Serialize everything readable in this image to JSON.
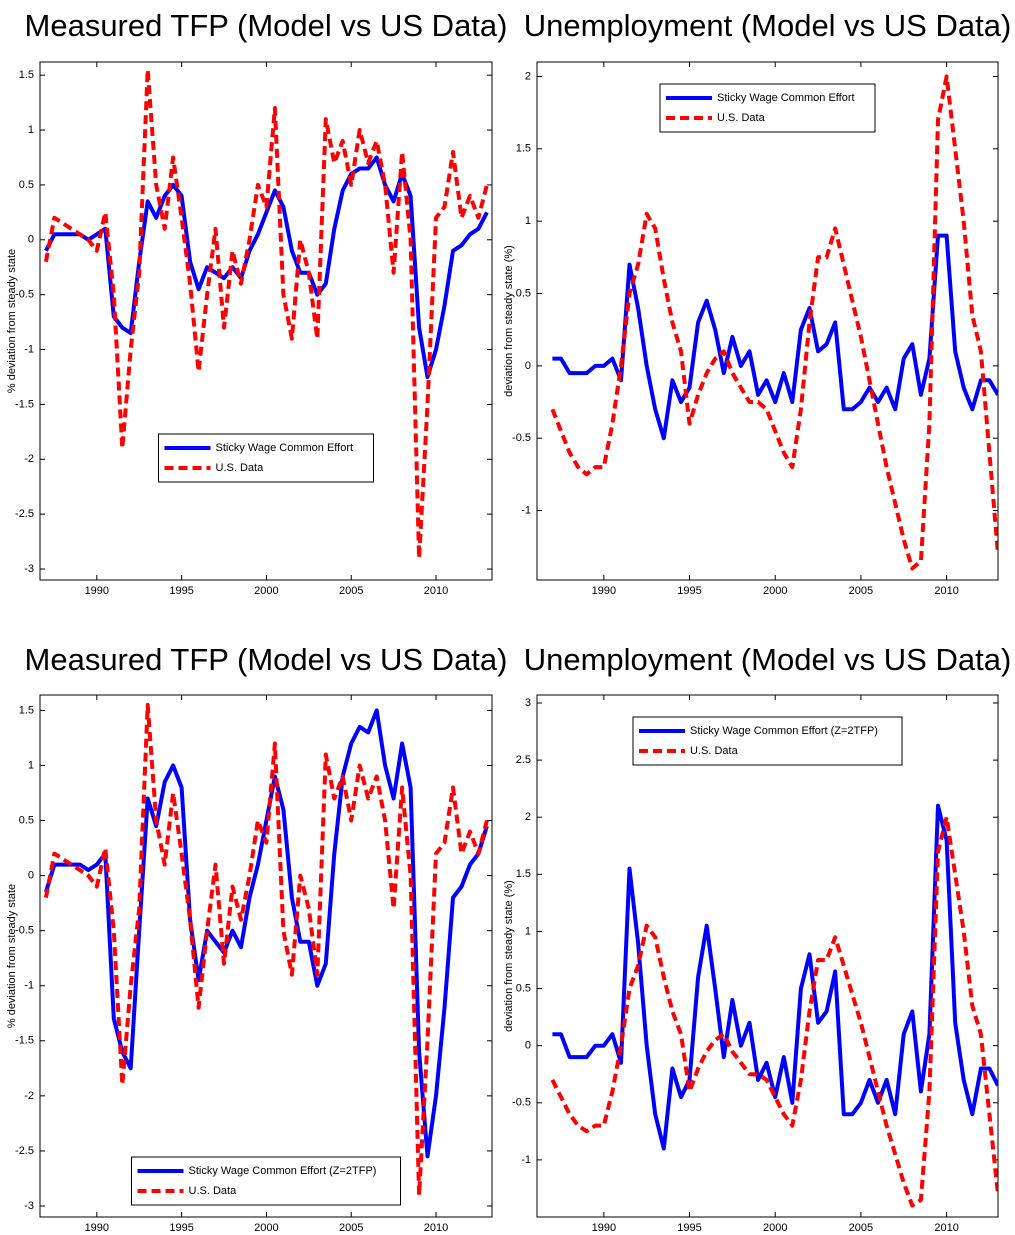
{
  "chart_data": [
    {
      "type": "line",
      "title": "Measured TFP (Model vs US Data)",
      "y_label": "% deviation from steady state",
      "x": [
        1987,
        1987.5,
        1988,
        1988.5,
        1989,
        1989.5,
        1990,
        1990.5,
        1991,
        1991.5,
        1992,
        1992.5,
        1993,
        1993.5,
        1994,
        1994.5,
        1995,
        1995.5,
        1996,
        1996.5,
        1997,
        1997.5,
        1998,
        1998.5,
        1999,
        1999.5,
        2000,
        2000.5,
        2001,
        2001.5,
        2002,
        2002.5,
        2003,
        2003.5,
        2004,
        2004.5,
        2005,
        2005.5,
        2006,
        2006.5,
        2007,
        2007.5,
        2008,
        2008.5,
        2009,
        2009.5,
        2010,
        2010.5,
        2011,
        2011.5,
        2012,
        2012.5,
        2013
      ],
      "xlim": [
        1986.65,
        2013.3
      ],
      "xticks": [
        1990,
        1995,
        2000,
        2005,
        2010
      ],
      "ylim": [
        -3.1,
        1.62
      ],
      "yticks": [
        -3,
        -2.5,
        -2,
        -1.5,
        -1,
        -0.5,
        0,
        0.5,
        1,
        1.5
      ],
      "legend_loc": "lower center",
      "series": [
        {
          "name": "Sticky Wage Common Effort",
          "color": "#0000ff",
          "dashed": false,
          "values": [
            -0.1,
            0.05,
            0.05,
            0.05,
            0.05,
            0,
            0.05,
            0.1,
            -0.7,
            -0.8,
            -0.85,
            -0.2,
            0.35,
            0.2,
            0.4,
            0.5,
            0.4,
            -0.2,
            -0.45,
            -0.25,
            -0.3,
            -0.35,
            -0.25,
            -0.35,
            -0.1,
            0.05,
            0.25,
            0.45,
            0.3,
            -0.1,
            -0.3,
            -0.3,
            -0.5,
            -0.4,
            0.1,
            0.45,
            0.6,
            0.65,
            0.65,
            0.75,
            0.5,
            0.35,
            0.6,
            0.4,
            -0.8,
            -1.25,
            -1,
            -0.6,
            -0.1,
            -0.05,
            0.05,
            0.1,
            0.25
          ]
        },
        {
          "name": "U.S. Data",
          "color": "#ff0000",
          "dashed": true,
          "values": [
            -0.2,
            0.2,
            0.15,
            0.1,
            0.05,
            0,
            -0.1,
            0.25,
            -0.5,
            -1.9,
            -1,
            -0.3,
            1.55,
            0.5,
            0.1,
            0.75,
            0.2,
            -0.4,
            -1.2,
            -0.5,
            0.1,
            -0.8,
            -0.1,
            -0.4,
            0,
            0.5,
            0.3,
            1.2,
            -0.5,
            -0.9,
            0,
            -0.3,
            -0.9,
            1.1,
            0.7,
            0.9,
            0.5,
            1,
            0.7,
            0.9,
            0.5,
            -0.3,
            0.8,
            0,
            -2.9,
            -1.5,
            0.2,
            0.3,
            0.8,
            0.2,
            0.4,
            0.2,
            0.5
          ]
        }
      ]
    },
    {
      "type": "line",
      "title": "Unemployment (Model vs US Data)",
      "y_label": "deviation from steady state (%)",
      "x": [
        1987,
        1987.5,
        1988,
        1988.5,
        1989,
        1989.5,
        1990,
        1990.5,
        1991,
        1991.5,
        1992,
        1992.5,
        1993,
        1993.5,
        1994,
        1994.5,
        1995,
        1995.5,
        1996,
        1996.5,
        1997,
        1997.5,
        1998,
        1998.5,
        1999,
        1999.5,
        2000,
        2000.5,
        2001,
        2001.5,
        2002,
        2002.5,
        2003,
        2003.5,
        2004,
        2004.5,
        2005,
        2005.5,
        2006,
        2006.5,
        2007,
        2007.5,
        2008,
        2008.5,
        2009,
        2009.5,
        2010,
        2010.5,
        2011,
        2011.5,
        2012,
        2012.5,
        2013
      ],
      "xlim": [
        1986.1,
        2013
      ],
      "xticks": [
        1990,
        1995,
        2000,
        2005,
        2010
      ],
      "ylim": [
        -1.48,
        2.1
      ],
      "yticks": [
        -1,
        -0.5,
        0,
        0.5,
        1,
        1.5,
        2
      ],
      "legend_loc": "upper center",
      "series": [
        {
          "name": "Sticky Wage Common Effort",
          "color": "#0000ff",
          "dashed": false,
          "values": [
            0.05,
            0.05,
            -0.05,
            -0.05,
            -0.05,
            0,
            0,
            0.05,
            -0.1,
            0.7,
            0.4,
            0,
            -0.3,
            -0.5,
            -0.1,
            -0.25,
            -0.15,
            0.3,
            0.45,
            0.25,
            -0.05,
            0.2,
            0,
            0.1,
            -0.2,
            -0.1,
            -0.25,
            -0.05,
            -0.25,
            0.25,
            0.4,
            0.1,
            0.15,
            0.3,
            -0.3,
            -0.3,
            -0.25,
            -0.15,
            -0.25,
            -0.15,
            -0.3,
            0.05,
            0.15,
            -0.2,
            0.05,
            0.9,
            0.9,
            0.1,
            -0.15,
            -0.3,
            -0.1,
            -0.1,
            -0.2
          ]
        },
        {
          "name": "U.S. Data",
          "color": "#ff0000",
          "dashed": true,
          "values": [
            -0.3,
            -0.45,
            -0.6,
            -0.7,
            -0.75,
            -0.7,
            -0.7,
            -0.4,
            0,
            0.5,
            0.7,
            1.05,
            0.95,
            0.6,
            0.3,
            0.1,
            -0.4,
            -0.2,
            -0.05,
            0.05,
            0.1,
            -0.05,
            -0.15,
            -0.25,
            -0.25,
            -0.3,
            -0.45,
            -0.6,
            -0.7,
            -0.3,
            0.3,
            0.75,
            0.75,
            0.95,
            0.7,
            0.45,
            0.2,
            -0.1,
            -0.4,
            -0.7,
            -0.95,
            -1.2,
            -1.4,
            -1.35,
            -0.4,
            1.7,
            2,
            1.5,
            1,
            0.35,
            0.1,
            -0.6,
            -1.3
          ]
        }
      ]
    },
    {
      "type": "line",
      "title": "Measured TFP (Model vs US Data)",
      "y_label": "% deviation from steady state",
      "x": [
        1987,
        1987.5,
        1988,
        1988.5,
        1989,
        1989.5,
        1990,
        1990.5,
        1991,
        1991.5,
        1992,
        1992.5,
        1993,
        1993.5,
        1994,
        1994.5,
        1995,
        1995.5,
        1996,
        1996.5,
        1997,
        1997.5,
        1998,
        1998.5,
        1999,
        1999.5,
        2000,
        2000.5,
        2001,
        2001.5,
        2002,
        2002.5,
        2003,
        2003.5,
        2004,
        2004.5,
        2005,
        2005.5,
        2006,
        2006.5,
        2007,
        2007.5,
        2008,
        2008.5,
        2009,
        2009.5,
        2010,
        2010.5,
        2011,
        2011.5,
        2012,
        2012.5,
        2013
      ],
      "xlim": [
        1986.65,
        2013.3
      ],
      "xticks": [
        1990,
        1995,
        2000,
        2005,
        2010
      ],
      "ylim": [
        -3.1,
        1.64
      ],
      "yticks": [
        -3,
        -2.5,
        -2,
        -1.5,
        -1,
        -0.5,
        0,
        0.5,
        1,
        1.5
      ],
      "legend_loc": "lower center",
      "series": [
        {
          "name": "Sticky Wage Common Effort (Z=2TFP)",
          "color": "#0000ff",
          "dashed": false,
          "values": [
            -0.15,
            0.1,
            0.1,
            0.1,
            0.1,
            0.05,
            0.1,
            0.2,
            -1.3,
            -1.6,
            -1.75,
            -0.5,
            0.7,
            0.45,
            0.85,
            1,
            0.8,
            -0.4,
            -0.95,
            -0.5,
            -0.6,
            -0.7,
            -0.5,
            -0.65,
            -0.2,
            0.1,
            0.5,
            0.9,
            0.6,
            -0.2,
            -0.6,
            -0.6,
            -1,
            -0.8,
            0.2,
            0.9,
            1.2,
            1.35,
            1.3,
            1.5,
            1,
            0.7,
            1.2,
            0.8,
            -1.6,
            -2.55,
            -2,
            -1.2,
            -0.2,
            -0.1,
            0.1,
            0.2,
            0.45
          ]
        },
        {
          "name": "U.S. Data",
          "color": "#ff0000",
          "dashed": true,
          "values": [
            -0.2,
            0.2,
            0.15,
            0.1,
            0.05,
            0,
            -0.1,
            0.25,
            -0.5,
            -1.9,
            -1,
            -0.3,
            1.55,
            0.5,
            0.1,
            0.75,
            0.2,
            -0.4,
            -1.2,
            -0.5,
            0.1,
            -0.8,
            -0.1,
            -0.4,
            0,
            0.5,
            0.3,
            1.2,
            -0.5,
            -0.9,
            0,
            -0.3,
            -0.9,
            1.1,
            0.7,
            0.9,
            0.5,
            1,
            0.7,
            0.9,
            0.5,
            -0.3,
            0.8,
            0,
            -2.9,
            -1.5,
            0.2,
            0.3,
            0.8,
            0.2,
            0.4,
            0.2,
            0.5
          ]
        }
      ]
    },
    {
      "type": "line",
      "title": "Unemployment (Model vs US Data)",
      "y_label": "deviation from steady state (%)",
      "x": [
        1987,
        1987.5,
        1988,
        1988.5,
        1989,
        1989.5,
        1990,
        1990.5,
        1991,
        1991.5,
        1992,
        1992.5,
        1993,
        1993.5,
        1994,
        1994.5,
        1995,
        1995.5,
        1996,
        1996.5,
        1997,
        1997.5,
        1998,
        1998.5,
        1999,
        1999.5,
        2000,
        2000.5,
        2001,
        2001.5,
        2002,
        2002.5,
        2003,
        2003.5,
        2004,
        2004.5,
        2005,
        2005.5,
        2006,
        2006.5,
        2007,
        2007.5,
        2008,
        2008.5,
        2009,
        2009.5,
        2010,
        2010.5,
        2011,
        2011.5,
        2012,
        2012.5,
        2013
      ],
      "xlim": [
        1986.1,
        2013
      ],
      "xticks": [
        1990,
        1995,
        2000,
        2005,
        2010
      ],
      "ylim": [
        -1.5,
        3.07
      ],
      "yticks": [
        -1,
        -0.5,
        0,
        0.5,
        1,
        1.5,
        2,
        2.5,
        3
      ],
      "legend_loc": "upper center",
      "series": [
        {
          "name": "Sticky Wage Common Effort (Z=2TFP)",
          "color": "#0000ff",
          "dashed": false,
          "values": [
            0.1,
            0.1,
            -0.1,
            -0.1,
            -0.1,
            0,
            0,
            0.1,
            -0.15,
            1.55,
            0.9,
            0,
            -0.6,
            -0.9,
            -0.2,
            -0.45,
            -0.3,
            0.6,
            1.05,
            0.5,
            -0.1,
            0.4,
            0,
            0.2,
            -0.3,
            -0.15,
            -0.45,
            -0.1,
            -0.5,
            0.5,
            0.8,
            0.2,
            0.3,
            0.65,
            -0.6,
            -0.6,
            -0.5,
            -0.3,
            -0.5,
            -0.3,
            -0.6,
            0.1,
            0.3,
            -0.4,
            0.1,
            2.1,
            1.8,
            0.2,
            -0.3,
            -0.6,
            -0.2,
            -0.2,
            -0.35
          ]
        },
        {
          "name": "U.S. Data",
          "color": "#ff0000",
          "dashed": true,
          "values": [
            -0.3,
            -0.45,
            -0.6,
            -0.7,
            -0.75,
            -0.7,
            -0.7,
            -0.4,
            0,
            0.5,
            0.7,
            1.05,
            0.95,
            0.6,
            0.3,
            0.1,
            -0.4,
            -0.2,
            -0.05,
            0.05,
            0.1,
            -0.05,
            -0.15,
            -0.25,
            -0.25,
            -0.3,
            -0.45,
            -0.6,
            -0.7,
            -0.3,
            0.3,
            0.75,
            0.75,
            0.95,
            0.7,
            0.45,
            0.2,
            -0.1,
            -0.4,
            -0.7,
            -0.95,
            -1.2,
            -1.4,
            -1.35,
            -0.4,
            1.7,
            2,
            1.5,
            1,
            0.35,
            0.1,
            -0.6,
            -1.3
          ]
        }
      ]
    }
  ]
}
